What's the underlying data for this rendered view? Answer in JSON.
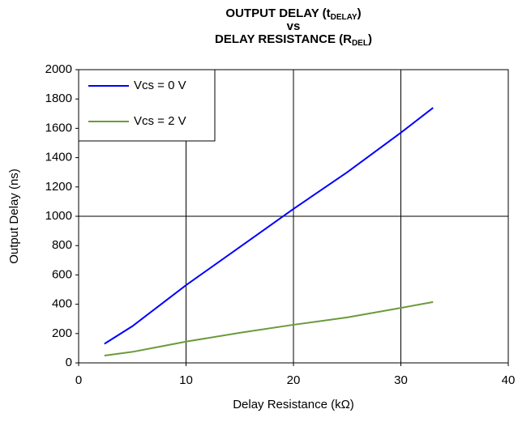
{
  "chart_data": {
    "type": "line",
    "title": [
      [
        {
          "text": "OUTPUT DELAY (t"
        },
        {
          "text": "DELAY",
          "sub": true
        },
        {
          "text": ")"
        }
      ],
      [
        {
          "text": "vs"
        }
      ],
      [
        {
          "text": "DELAY RESISTANCE (R"
        },
        {
          "text": "DEL",
          "sub": true
        },
        {
          "text": ")"
        }
      ]
    ],
    "x_label": "Delay Resistance (kΩ)",
    "y_label": "Output Delay (ns)",
    "xlim": [
      0,
      40
    ],
    "xticks": [
      0,
      10,
      20,
      30,
      40
    ],
    "ylim": [
      0,
      2000
    ],
    "yticks": [
      0,
      200,
      400,
      600,
      800,
      1000,
      1200,
      1400,
      1600,
      1800,
      2000
    ],
    "x_gridlines": [
      10,
      20,
      30
    ],
    "y_gridlines": [
      1000
    ],
    "legend": "upper left",
    "series": [
      {
        "name": "Vcs = 0 V",
        "color": "#0000ff",
        "x": [
          2.4,
          5,
          7.5,
          10,
          15,
          20,
          25,
          30,
          33
        ],
        "values": [
          130,
          250,
          390,
          530,
          790,
          1050,
          1300,
          1570,
          1740
        ]
      },
      {
        "name": "Vcs = 2 V",
        "color": "#6b9a3a",
        "x": [
          2.4,
          5,
          7.5,
          10,
          15,
          20,
          25,
          30,
          33
        ],
        "values": [
          50,
          75,
          110,
          145,
          205,
          260,
          310,
          375,
          415
        ]
      }
    ]
  }
}
